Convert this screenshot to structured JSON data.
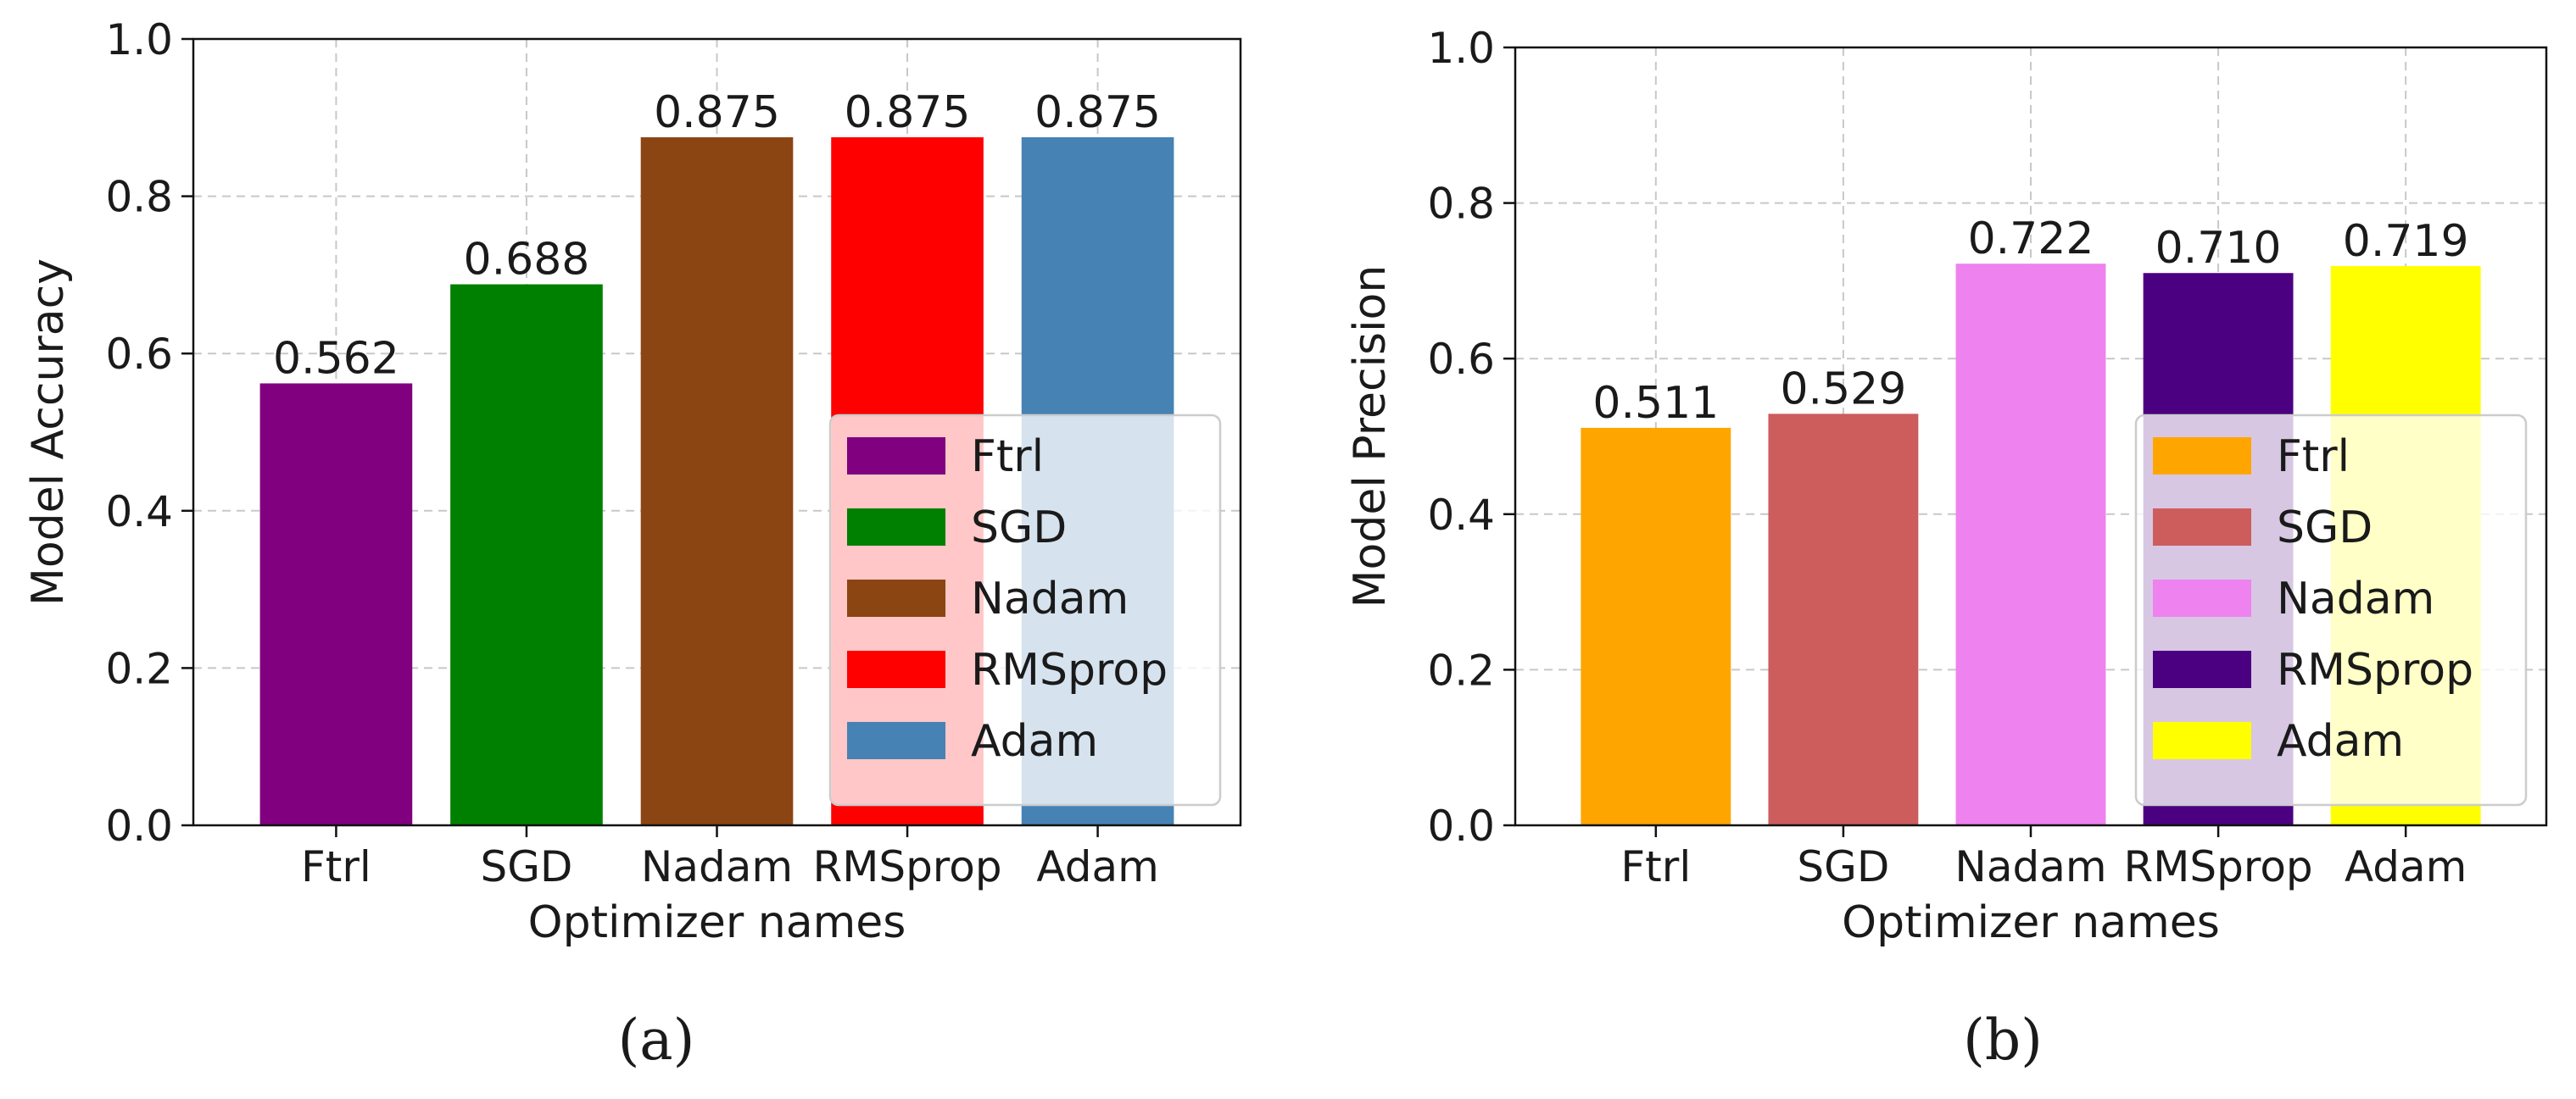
{
  "chart_data": [
    {
      "type": "bar",
      "panel_label": "(a)",
      "xlabel": "Optimizer names",
      "ylabel": "Model Accuracy",
      "ylim": [
        0,
        1.0
      ],
      "yticks": [
        "0.0",
        "0.2",
        "0.4",
        "0.6",
        "0.8",
        "1.0"
      ],
      "categories": [
        "Ftrl",
        "SGD",
        "Nadam",
        "RMSprop",
        "Adam"
      ],
      "values": [
        0.562,
        0.688,
        0.875,
        0.875,
        0.875
      ],
      "value_labels": [
        "0.562",
        "0.688",
        "0.875",
        "0.875",
        "0.875"
      ],
      "colors": [
        "#800080",
        "#008000",
        "#8B4513",
        "#FF0000",
        "#4682B4"
      ],
      "legend": [
        "Ftrl",
        "SGD",
        "Nadam",
        "RMSprop",
        "Adam"
      ],
      "legend_position": "lower right",
      "grid": true
    },
    {
      "type": "bar",
      "panel_label": "(b)",
      "xlabel": "Optimizer names",
      "ylabel": "Model Precision",
      "ylim": [
        0,
        1.0
      ],
      "yticks": [
        "0.0",
        "0.2",
        "0.4",
        "0.6",
        "0.8",
        "1.0"
      ],
      "categories": [
        "Ftrl",
        "SGD",
        "Nadam",
        "RMSprop",
        "Adam"
      ],
      "values": [
        0.511,
        0.529,
        0.722,
        0.71,
        0.719
      ],
      "value_labels": [
        "0.511",
        "0.529",
        "0.722",
        "0.710",
        "0.719"
      ],
      "colors": [
        "#FFA500",
        "#CD5C5C",
        "#EE82EE",
        "#4B0082",
        "#FFFF00"
      ],
      "legend": [
        "Ftrl",
        "SGD",
        "Nadam",
        "RMSprop",
        "Adam"
      ],
      "legend_position": "lower right",
      "grid": true
    }
  ]
}
